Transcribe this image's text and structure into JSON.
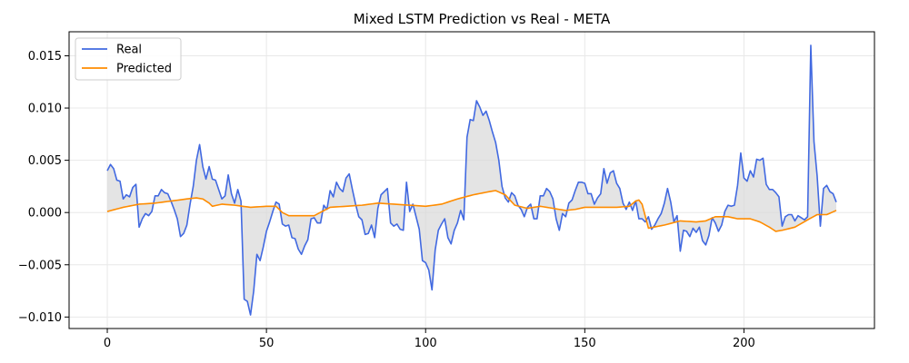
{
  "chart_data": {
    "type": "line",
    "title": "Mixed LSTM Prediction vs Real - META",
    "xlabel": "",
    "ylabel": "",
    "xlim": [
      -12,
      241
    ],
    "ylim": [
      -0.0111,
      0.0173
    ],
    "x_ticks": [
      0,
      50,
      100,
      150,
      200
    ],
    "x_tick_labels": [
      "0",
      "50",
      "100",
      "150",
      "200"
    ],
    "y_ticks": [
      -0.01,
      -0.005,
      0.0,
      0.005,
      0.01,
      0.015
    ],
    "y_tick_labels": [
      "−0.010",
      "−0.005",
      "0.000",
      "0.005",
      "0.010",
      "0.015"
    ],
    "grid": true,
    "legend_position": "upper-left",
    "fill_between": true,
    "colors": {
      "real": "#4169e1",
      "predicted": "#ff8c00",
      "fill": "#d9d9d9",
      "grid": "#e8e8e8"
    },
    "series": [
      {
        "name": "Real",
        "points": [
          [
            0,
            0.004
          ],
          [
            1,
            0.0046
          ],
          [
            2,
            0.0042
          ],
          [
            3,
            0.0031
          ],
          [
            4,
            0.003
          ],
          [
            5,
            0.0013
          ],
          [
            6,
            0.0017
          ],
          [
            7,
            0.0015
          ],
          [
            8,
            0.0024
          ],
          [
            9,
            0.0027
          ],
          [
            10,
            -0.0014
          ],
          [
            11,
            -0.0006
          ],
          [
            12,
            -0.0001
          ],
          [
            13,
            -0.0003
          ],
          [
            14,
            0.0001
          ],
          [
            15,
            0.0016
          ],
          [
            16,
            0.0016
          ],
          [
            17,
            0.0022
          ],
          [
            18,
            0.0019
          ],
          [
            19,
            0.0018
          ],
          [
            20,
            0.0011
          ],
          [
            21,
            0.0003
          ],
          [
            22,
            -0.0006
          ],
          [
            23,
            -0.0023
          ],
          [
            24,
            -0.002
          ],
          [
            25,
            -0.0012
          ],
          [
            26,
            0.0008
          ],
          [
            27,
            0.0025
          ],
          [
            28,
            0.005
          ],
          [
            29,
            0.0065
          ],
          [
            30,
            0.0044
          ],
          [
            31,
            0.0032
          ],
          [
            32,
            0.0044
          ],
          [
            33,
            0.0032
          ],
          [
            34,
            0.0031
          ],
          [
            35,
            0.0022
          ],
          [
            36,
            0.0013
          ],
          [
            37,
            0.0016
          ],
          [
            38,
            0.0036
          ],
          [
            39,
            0.0018
          ],
          [
            40,
            0.0009
          ],
          [
            41,
            0.0022
          ],
          [
            42,
            0.0011
          ],
          [
            43,
            -0.0083
          ],
          [
            44,
            -0.0085
          ],
          [
            45,
            -0.0098
          ],
          [
            46,
            -0.0075
          ],
          [
            47,
            -0.004
          ],
          [
            48,
            -0.0046
          ],
          [
            49,
            -0.0033
          ],
          [
            50,
            -0.0018
          ],
          [
            51,
            -0.0009
          ],
          [
            52,
            0.0001
          ],
          [
            53,
            0.001
          ],
          [
            54,
            0.0008
          ],
          [
            55,
            -0.0011
          ],
          [
            56,
            -0.0013
          ],
          [
            57,
            -0.0012
          ],
          [
            58,
            -0.0024
          ],
          [
            59,
            -0.0025
          ],
          [
            60,
            -0.0035
          ],
          [
            61,
            -0.004
          ],
          [
            62,
            -0.0032
          ],
          [
            63,
            -0.0026
          ],
          [
            64,
            -0.0006
          ],
          [
            65,
            -0.0005
          ],
          [
            66,
            -0.001
          ],
          [
            67,
            -0.001
          ],
          [
            68,
            0.0007
          ],
          [
            69,
            0.0003
          ],
          [
            70,
            0.0021
          ],
          [
            71,
            0.0015
          ],
          [
            72,
            0.0029
          ],
          [
            73,
            0.0023
          ],
          [
            74,
            0.002
          ],
          [
            75,
            0.0033
          ],
          [
            76,
            0.0037
          ],
          [
            77,
            0.0022
          ],
          [
            78,
            0.0008
          ],
          [
            79,
            -0.0004
          ],
          [
            80,
            -0.0007
          ],
          [
            81,
            -0.0021
          ],
          [
            82,
            -0.002
          ],
          [
            83,
            -0.0012
          ],
          [
            84,
            -0.0024
          ],
          [
            85,
            0.0004
          ],
          [
            86,
            0.0017
          ],
          [
            87,
            0.002
          ],
          [
            88,
            0.0023
          ],
          [
            89,
            -0.001
          ],
          [
            90,
            -0.0013
          ],
          [
            91,
            -0.0011
          ],
          [
            92,
            -0.0016
          ],
          [
            93,
            -0.0017
          ],
          [
            94,
            0.0029
          ],
          [
            95,
            0.0001
          ],
          [
            96,
            0.0008
          ],
          [
            97,
            -0.0004
          ],
          [
            98,
            -0.0016
          ],
          [
            99,
            -0.0046
          ],
          [
            100,
            -0.0048
          ],
          [
            101,
            -0.0055
          ],
          [
            102,
            -0.0074
          ],
          [
            103,
            -0.0036
          ],
          [
            104,
            -0.0017
          ],
          [
            105,
            -0.0011
          ],
          [
            106,
            -0.0006
          ],
          [
            107,
            -0.0024
          ],
          [
            108,
            -0.003
          ],
          [
            109,
            -0.0017
          ],
          [
            110,
            -0.001
          ],
          [
            111,
            0.0002
          ],
          [
            112,
            -0.0007
          ],
          [
            113,
            0.0072
          ],
          [
            114,
            0.0089
          ],
          [
            115,
            0.0088
          ],
          [
            116,
            0.0107
          ],
          [
            117,
            0.0101
          ],
          [
            118,
            0.0093
          ],
          [
            119,
            0.0097
          ],
          [
            120,
            0.0088
          ],
          [
            121,
            0.0077
          ],
          [
            122,
            0.0067
          ],
          [
            123,
            0.005
          ],
          [
            124,
            0.0025
          ],
          [
            125,
            0.0014
          ],
          [
            126,
            0.001
          ],
          [
            127,
            0.0019
          ],
          [
            128,
            0.0016
          ],
          [
            129,
            0.0007
          ],
          [
            130,
            0.0003
          ],
          [
            131,
            -0.0004
          ],
          [
            132,
            0.0005
          ],
          [
            133,
            0.0008
          ],
          [
            134,
            -0.0006
          ],
          [
            135,
            -0.0006
          ],
          [
            136,
            0.0016
          ],
          [
            137,
            0.0016
          ],
          [
            138,
            0.0023
          ],
          [
            139,
            0.002
          ],
          [
            140,
            0.0013
          ],
          [
            141,
            -0.0006
          ],
          [
            142,
            -0.0017
          ],
          [
            143,
            -0.0001
          ],
          [
            144,
            -0.0004
          ],
          [
            145,
            0.0009
          ],
          [
            146,
            0.0012
          ],
          [
            147,
            0.0021
          ],
          [
            148,
            0.0029
          ],
          [
            149,
            0.0029
          ],
          [
            150,
            0.0028
          ],
          [
            151,
            0.0018
          ],
          [
            152,
            0.0018
          ],
          [
            153,
            0.0008
          ],
          [
            154,
            0.0014
          ],
          [
            155,
            0.0018
          ],
          [
            156,
            0.0042
          ],
          [
            157,
            0.0028
          ],
          [
            158,
            0.0038
          ],
          [
            159,
            0.004
          ],
          [
            160,
            0.0028
          ],
          [
            161,
            0.0023
          ],
          [
            162,
            0.0009
          ],
          [
            163,
            0.0003
          ],
          [
            164,
            0.001
          ],
          [
            165,
            0.0002
          ],
          [
            166,
            0.0011
          ],
          [
            167,
            -0.0006
          ],
          [
            168,
            -0.0006
          ],
          [
            169,
            -0.0009
          ],
          [
            170,
            -0.0004
          ],
          [
            171,
            -0.0016
          ],
          [
            172,
            -0.0012
          ],
          [
            173,
            -0.0006
          ],
          [
            174,
            -0.0001
          ],
          [
            175,
            0.0009
          ],
          [
            176,
            0.0023
          ],
          [
            177,
            0.001
          ],
          [
            178,
            -0.0009
          ],
          [
            179,
            -0.0003
          ],
          [
            180,
            -0.0037
          ],
          [
            181,
            -0.0017
          ],
          [
            182,
            -0.0018
          ],
          [
            183,
            -0.0023
          ],
          [
            184,
            -0.0015
          ],
          [
            185,
            -0.0019
          ],
          [
            186,
            -0.0014
          ],
          [
            187,
            -0.0027
          ],
          [
            188,
            -0.0031
          ],
          [
            189,
            -0.0022
          ],
          [
            190,
            -0.0005
          ],
          [
            191,
            -0.001
          ],
          [
            192,
            -0.0018
          ],
          [
            193,
            -0.0012
          ],
          [
            194,
            0.0001
          ],
          [
            195,
            0.0007
          ],
          [
            196,
            0.0006
          ],
          [
            197,
            0.0007
          ],
          [
            198,
            0.0026
          ],
          [
            199,
            0.0057
          ],
          [
            200,
            0.0033
          ],
          [
            201,
            0.003
          ],
          [
            202,
            0.004
          ],
          [
            203,
            0.0034
          ],
          [
            204,
            0.0051
          ],
          [
            205,
            0.005
          ],
          [
            206,
            0.0052
          ],
          [
            207,
            0.0027
          ],
          [
            208,
            0.0022
          ],
          [
            209,
            0.0022
          ],
          [
            210,
            0.0019
          ],
          [
            211,
            0.0015
          ],
          [
            212,
            -0.0013
          ],
          [
            213,
            -0.0004
          ],
          [
            214,
            -0.0002
          ],
          [
            215,
            -0.0002
          ],
          [
            216,
            -0.0008
          ],
          [
            217,
            -0.0003
          ],
          [
            218,
            -0.0005
          ],
          [
            219,
            -0.0007
          ],
          [
            220,
            -0.0004
          ],
          [
            221,
            0.016
          ],
          [
            222,
            0.0068
          ],
          [
            223,
            0.0035
          ],
          [
            224,
            -0.0013
          ],
          [
            225,
            0.0023
          ],
          [
            226,
            0.0026
          ],
          [
            227,
            0.002
          ],
          [
            228,
            0.0018
          ],
          [
            229,
            0.001
          ]
        ]
      },
      {
        "name": "Predicted",
        "points": [
          [
            0,
            0.0001
          ],
          [
            5,
            0.0005
          ],
          [
            10,
            0.0008
          ],
          [
            15,
            0.0009
          ],
          [
            20,
            0.0011
          ],
          [
            25,
            0.0013
          ],
          [
            28,
            0.0014
          ],
          [
            30,
            0.0013
          ],
          [
            32,
            0.0009
          ],
          [
            33,
            0.0006
          ],
          [
            36,
            0.0008
          ],
          [
            40,
            0.0007
          ],
          [
            45,
            0.0005
          ],
          [
            50,
            0.0006
          ],
          [
            53,
            0.0006
          ],
          [
            55,
            0.0
          ],
          [
            57,
            -0.0003
          ],
          [
            60,
            -0.0003
          ],
          [
            65,
            -0.0003
          ],
          [
            70,
            0.0005
          ],
          [
            75,
            0.0006
          ],
          [
            80,
            0.0007
          ],
          [
            85,
            0.0009
          ],
          [
            90,
            0.0008
          ],
          [
            95,
            0.0007
          ],
          [
            100,
            0.0006
          ],
          [
            105,
            0.0008
          ],
          [
            110,
            0.0013
          ],
          [
            115,
            0.0017
          ],
          [
            120,
            0.002
          ],
          [
            122,
            0.0021
          ],
          [
            125,
            0.0017
          ],
          [
            128,
            0.0007
          ],
          [
            132,
            0.0004
          ],
          [
            136,
            0.0006
          ],
          [
            140,
            0.0004
          ],
          [
            144,
            0.0002
          ],
          [
            147,
            0.0003
          ],
          [
            150,
            0.0005
          ],
          [
            155,
            0.0005
          ],
          [
            160,
            0.0005
          ],
          [
            164,
            0.0006
          ],
          [
            166,
            0.0011
          ],
          [
            167,
            0.0012
          ],
          [
            168,
            0.0008
          ],
          [
            170,
            -0.0015
          ],
          [
            175,
            -0.0012
          ],
          [
            180,
            -0.0008
          ],
          [
            185,
            -0.0009
          ],
          [
            188,
            -0.0008
          ],
          [
            191,
            -0.0004
          ],
          [
            195,
            -0.0004
          ],
          [
            198,
            -0.0006
          ],
          [
            202,
            -0.0006
          ],
          [
            205,
            -0.0009
          ],
          [
            208,
            -0.0014
          ],
          [
            210,
            -0.0018
          ],
          [
            212,
            -0.0017
          ],
          [
            216,
            -0.0014
          ],
          [
            220,
            -0.0007
          ],
          [
            223,
            -0.0002
          ],
          [
            226,
            -0.0002
          ],
          [
            229,
            0.0002
          ]
        ]
      }
    ]
  }
}
